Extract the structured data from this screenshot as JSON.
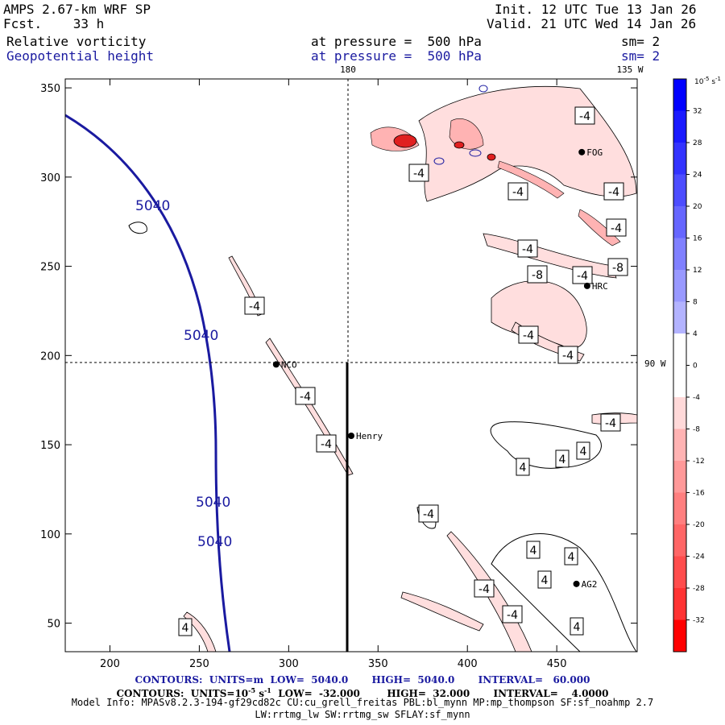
{
  "header": {
    "model": "AMPS 2.67-km WRF SP",
    "fcst_label": "Fcst.",
    "fcst_value": "33 h",
    "init": "Init. 12 UTC Tue 13 Jan 26",
    "valid": "Valid. 21 UTC Wed 14 Jan 26",
    "field1": "Relative vorticity",
    "field2": "Geopotential height",
    "level1": "at pressure =  500 hPa",
    "level2": "at pressure =  500 hPa",
    "sm1": "sm= 2",
    "sm2": "sm= 2"
  },
  "chart_data": {
    "type": "contour",
    "xlim": [
      175,
      495
    ],
    "ylim": [
      34,
      355
    ],
    "xticks": [
      200,
      250,
      300,
      350,
      400,
      450
    ],
    "yticks": [
      50,
      100,
      150,
      200,
      250,
      300,
      350
    ],
    "meridian_labels": {
      "top_180": "180",
      "top_135w": "135 W",
      "right_90w": "90 W"
    },
    "height_contour_label": "5040",
    "height_labels": [
      "5040",
      "5040",
      "5040",
      "5040"
    ],
    "vorticity_labels": [
      "-4",
      "-4",
      "-4",
      "-4",
      "-4",
      "-4",
      "-8",
      "-4",
      "-8",
      "-4",
      "-4",
      "-4",
      "-4",
      "-4",
      "-4",
      "-4",
      "-4",
      "-4",
      "4",
      "4",
      "4",
      "4",
      "4",
      "4",
      "4",
      "4"
    ],
    "stations": [
      {
        "name": "NCO",
        "x": 293,
        "y": 195
      },
      {
        "name": "Henry",
        "x": 335,
        "y": 155
      },
      {
        "name": "AG2",
        "x": 461,
        "y": 72
      },
      {
        "name": "HRC",
        "x": 467,
        "y": 239
      },
      {
        "name": "FOG",
        "x": 464,
        "y": 314
      }
    ],
    "colorbar": {
      "unit_label": "10",
      "unit_exp": "-5",
      "unit_suffix": "s",
      "unit_suffix_exp": "-1",
      "ticks": [
        "32",
        "28",
        "24",
        "20",
        "16",
        "12",
        "8",
        "4",
        "0",
        "-4",
        "-8",
        "-12",
        "-16",
        "-20",
        "-24",
        "-28",
        "-32"
      ],
      "colors": [
        "#0000ff",
        "#1a1aff",
        "#3333ff",
        "#4d4dff",
        "#6666ff",
        "#8080ff",
        "#9999ff",
        "#b3b3ff",
        "#ffffff",
        "#ffffff",
        "#ffd9d9",
        "#ffb3b3",
        "#ff9999",
        "#ff7f7f",
        "#ff6666",
        "#ff4d4d",
        "#ff3333",
        "#ff0000"
      ]
    }
  },
  "footer": {
    "line1_a": "CONTOURS:  UNITS=m  LOW=  5040.0",
    "line1_b": "HIGH=  5040.0",
    "line1_c": "INTERVAL=   60.000",
    "line2_a": "CONTOURS:  UNITS=10",
    "line2_exp": "-5",
    "line2_s": " s",
    "line2_sexp": "-1",
    "line2_b": "  LOW=  -32.000",
    "line2_c": "HIGH=  32.000",
    "line2_d": "INTERVAL=    4.0000",
    "line3": "Model Info: MPASv8.2.3-194-gf29cd82c CU:cu_grell_freitas PBL:bl_mynn MP:mp_thompson SF:sf_noahmp 2.7",
    "line4": "LW:rrtmg_lw SW:rrtmg_sw SFLAY:sf_mynn"
  }
}
